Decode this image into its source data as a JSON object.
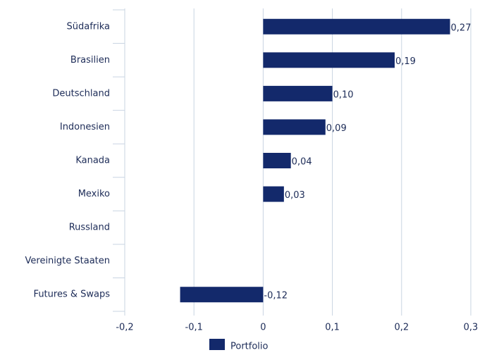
{
  "chart_data": {
    "type": "bar",
    "orientation": "horizontal",
    "categories": [
      "Südafrika",
      "Brasilien",
      "Deutschland",
      "Indonesien",
      "Kanada",
      "Mexiko",
      "Russland",
      "Vereinigte Staaten",
      "Futures & Swaps"
    ],
    "series": [
      {
        "name": "Portfolio",
        "color": "#13296b",
        "values": [
          0.27,
          0.19,
          0.1,
          0.09,
          0.04,
          0.03,
          null,
          null,
          -0.12
        ],
        "value_labels": [
          "0,27",
          "0,19",
          "0,10",
          "0,09",
          "0,04",
          "0,03",
          null,
          null,
          "-0,12"
        ]
      }
    ],
    "xlim": [
      -0.2,
      0.3
    ],
    "xticks": [
      {
        "value": -0.2,
        "label": "-0,2"
      },
      {
        "value": -0.1,
        "label": "-0,1"
      },
      0,
      {
        "value": 0.1,
        "label": "0,1"
      },
      {
        "value": 0.2,
        "label": "0,2"
      },
      {
        "value": 0.3,
        "label": "0,3"
      }
    ],
    "grid": true,
    "legend": "bottom"
  }
}
